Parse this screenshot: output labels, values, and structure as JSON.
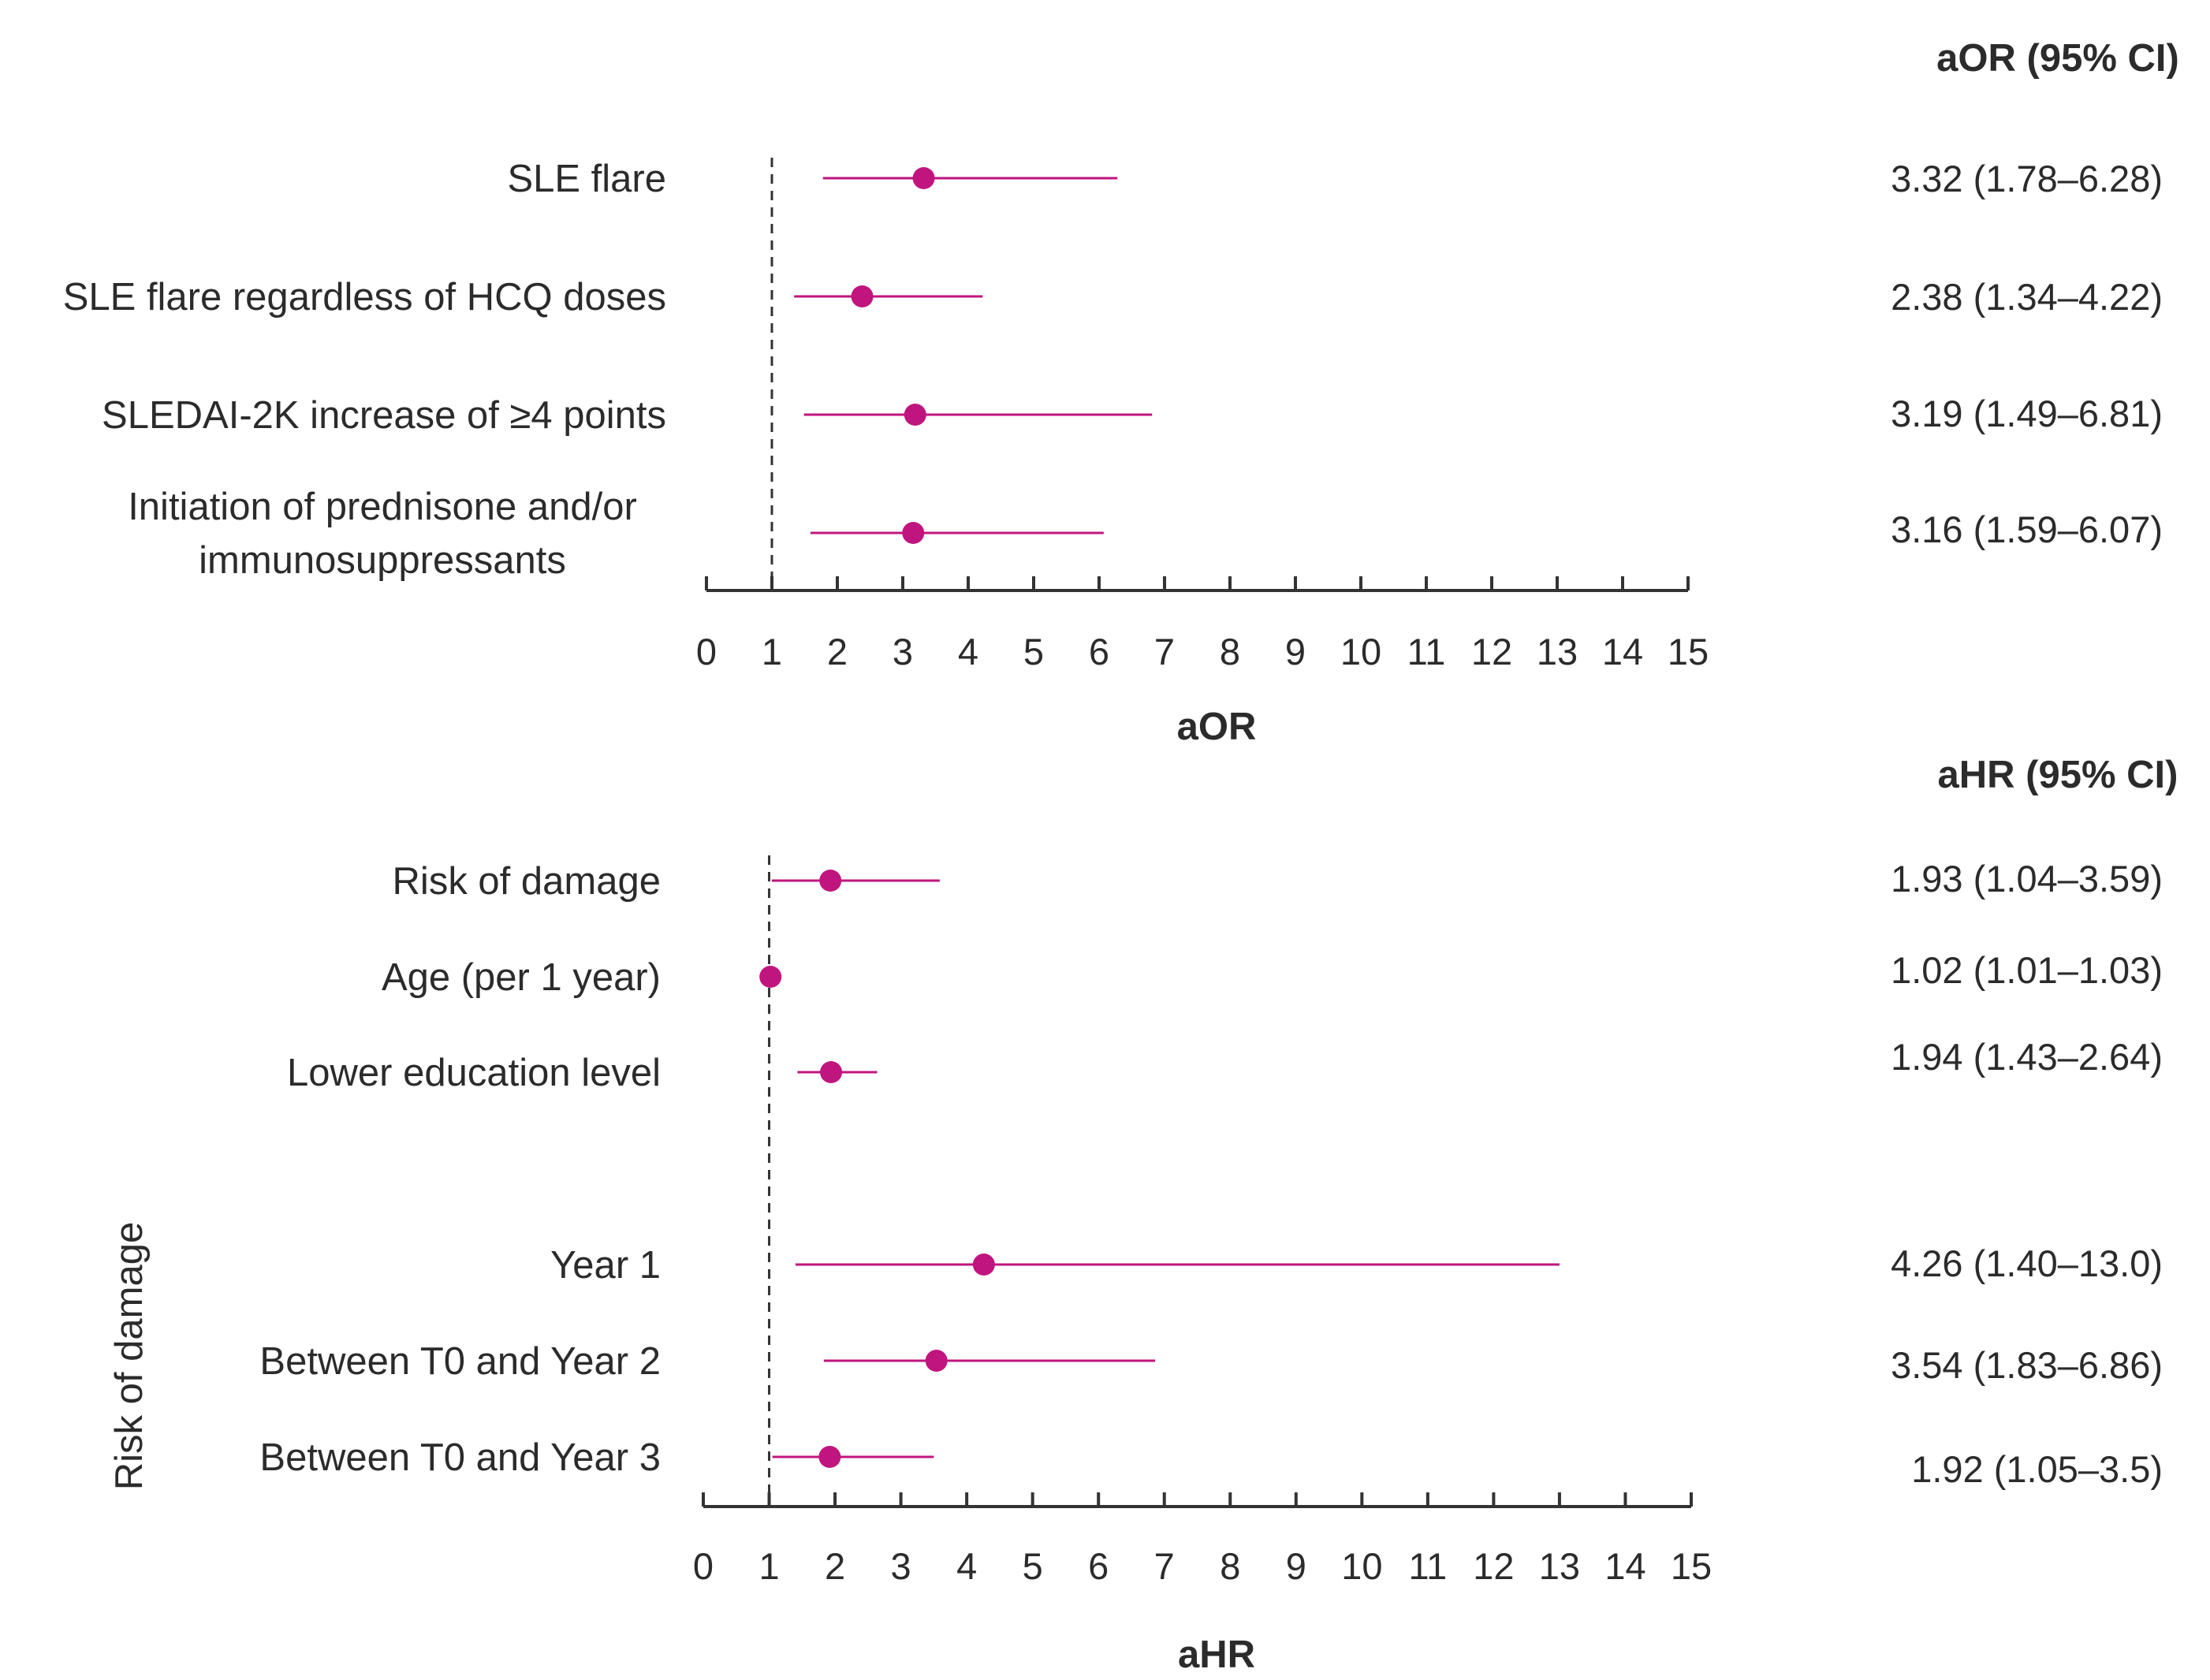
{
  "chart_data": [
    {
      "type": "forest",
      "axis_title": "aOR",
      "column_header": "aOR (95% CI)",
      "xlim": [
        0,
        15
      ],
      "ticks": [
        0,
        1,
        2,
        3,
        4,
        5,
        6,
        7,
        8,
        9,
        10,
        11,
        12,
        13,
        14,
        15
      ],
      "reference_line": 1,
      "point_color": "#c0157e",
      "rows": [
        {
          "label": [
            "SLE flare"
          ],
          "estimate": 3.32,
          "lower": 1.78,
          "upper": 6.28,
          "text": "3.32 (1.78–6.28)"
        },
        {
          "label": [
            "SLE flare regardless of HCQ doses"
          ],
          "estimate": 2.38,
          "lower": 1.34,
          "upper": 4.22,
          "text": "2.38 (1.34–4.22)"
        },
        {
          "label": [
            "SLEDAI-2K increase of ≥4 points"
          ],
          "estimate": 3.19,
          "lower": 1.49,
          "upper": 6.81,
          "text": "3.19 (1.49–6.81)"
        },
        {
          "label": [
            "Initiation of prednisone and/or",
            "immunosuppressants"
          ],
          "estimate": 3.16,
          "lower": 1.59,
          "upper": 6.07,
          "text": "3.16 (1.59–6.07)"
        }
      ]
    },
    {
      "type": "forest",
      "axis_title": "aHR",
      "column_header": "aHR (95% CI)",
      "group_label": "Risk of damage",
      "xlim": [
        0,
        15
      ],
      "ticks": [
        0,
        1,
        2,
        3,
        4,
        5,
        6,
        7,
        8,
        9,
        10,
        11,
        12,
        13,
        14,
        15
      ],
      "reference_line": 1,
      "point_color": "#c0157e",
      "rows": [
        {
          "label": [
            "Risk of damage"
          ],
          "estimate": 1.93,
          "lower": 1.04,
          "upper": 3.59,
          "text": "1.93 (1.04–3.59)"
        },
        {
          "label": [
            "Age (per 1 year)"
          ],
          "estimate": 1.02,
          "lower": 1.01,
          "upper": 1.03,
          "text": "1.02 (1.01–1.03)"
        },
        {
          "label": [
            "Lower education level"
          ],
          "estimate": 1.94,
          "lower": 1.43,
          "upper": 2.64,
          "text": "1.94 (1.43–2.64)"
        },
        {
          "label": [
            "Year 1"
          ],
          "estimate": 4.26,
          "lower": 1.4,
          "upper": 13.0,
          "text": "4.26 (1.40–13.0)"
        },
        {
          "label": [
            "Between T0 and Year 2"
          ],
          "estimate": 3.54,
          "lower": 1.83,
          "upper": 6.86,
          "text": "3.54 (1.83–6.86)"
        },
        {
          "label": [
            "Between T0 and Year 3"
          ],
          "estimate": 1.92,
          "lower": 1.05,
          "upper": 3.5,
          "text": "1.92 (1.05–3.5)"
        }
      ]
    }
  ]
}
